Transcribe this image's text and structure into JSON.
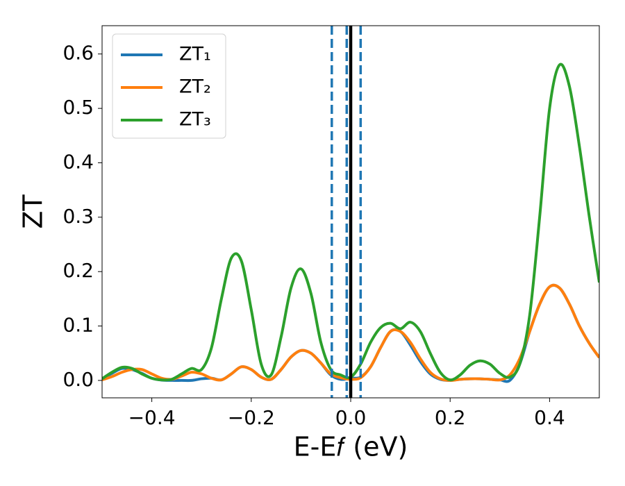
{
  "chart_data": {
    "type": "line",
    "xlabel": "E-E𝑓 (eV)",
    "ylabel": "ZT",
    "x": [
      -0.5,
      -0.48,
      -0.46,
      -0.44,
      -0.42,
      -0.4,
      -0.38,
      -0.36,
      -0.34,
      -0.32,
      -0.3,
      -0.28,
      -0.26,
      -0.24,
      -0.22,
      -0.2,
      -0.18,
      -0.16,
      -0.14,
      -0.12,
      -0.1,
      -0.08,
      -0.06,
      -0.04,
      -0.02,
      0.0,
      0.02,
      0.04,
      0.06,
      0.08,
      0.1,
      0.12,
      0.14,
      0.16,
      0.18,
      0.2,
      0.22,
      0.24,
      0.26,
      0.28,
      0.3,
      0.32,
      0.34,
      0.36,
      0.38,
      0.4,
      0.42,
      0.44,
      0.46,
      0.48,
      0.5
    ],
    "series": [
      {
        "name": "ZT₁",
        "color": "#1f77b4",
        "values": [
          0.003,
          0.013,
          0.022,
          0.02,
          0.013,
          0.004,
          0.0005,
          0,
          0,
          0,
          0.003,
          0.004,
          0.001,
          0.012,
          0.025,
          0.02,
          0.006,
          0.002,
          0.02,
          0.043,
          0.055,
          0.05,
          0.032,
          0.01,
          0.002,
          0.004,
          0.006,
          0.025,
          0.06,
          0.09,
          0.09,
          0.065,
          0.035,
          0.012,
          0.002,
          0,
          0.002,
          0.003,
          0.003,
          0.002,
          0.001,
          0,
          0.03,
          0.09,
          0.14,
          0.172,
          0.17,
          0.14,
          0.1,
          0.068,
          0.042
        ]
      },
      {
        "name": "ZT₂",
        "color": "#ff7f0e",
        "values": [
          0.001,
          0.007,
          0.015,
          0.02,
          0.02,
          0.012,
          0.004,
          0.002,
          0.008,
          0.015,
          0.012,
          0.004,
          0.001,
          0.012,
          0.025,
          0.02,
          0.006,
          0.002,
          0.02,
          0.043,
          0.055,
          0.05,
          0.032,
          0.012,
          0.005,
          0.002,
          0.005,
          0.025,
          0.06,
          0.09,
          0.09,
          0.07,
          0.04,
          0.015,
          0.003,
          0,
          0.002,
          0.003,
          0.003,
          0.002,
          0.001,
          0.01,
          0.04,
          0.09,
          0.14,
          0.172,
          0.17,
          0.14,
          0.1,
          0.068,
          0.042
        ]
      },
      {
        "name": "ZT₃",
        "color": "#2ca02c",
        "values": [
          0.003,
          0.015,
          0.024,
          0.022,
          0.012,
          0.004,
          0.001,
          0.002,
          0.012,
          0.022,
          0.02,
          0.06,
          0.15,
          0.225,
          0.22,
          0.13,
          0.03,
          0.01,
          0.08,
          0.17,
          0.205,
          0.16,
          0.07,
          0.02,
          0.01,
          0.006,
          0.03,
          0.07,
          0.097,
          0.105,
          0.095,
          0.107,
          0.09,
          0.05,
          0.015,
          0.001,
          0.01,
          0.028,
          0.036,
          0.03,
          0.013,
          0.006,
          0.03,
          0.12,
          0.3,
          0.5,
          0.58,
          0.54,
          0.43,
          0.3,
          0.18
        ]
      }
    ],
    "vlines": [
      {
        "x": -0.038,
        "color": "#1f77b4",
        "style": "dashed"
      },
      {
        "x": -0.008,
        "color": "#1f77b4",
        "style": "dashed"
      },
      {
        "x": 0.02,
        "color": "#1f77b4",
        "style": "dashed"
      },
      {
        "x": 0.0,
        "color": "#000000",
        "style": "solid"
      }
    ],
    "xlim": [
      -0.5,
      0.5
    ],
    "ylim": [
      -0.032,
      0.652
    ],
    "xticks": [
      {
        "value": -0.4,
        "label": "−0.4"
      },
      {
        "value": -0.2,
        "label": "−0.2"
      },
      {
        "value": 0.0,
        "label": "0.0"
      },
      0.2,
      0.4
    ],
    "yticks": [
      {
        "value": 0.0,
        "label": "0.0"
      },
      0.1,
      0.2,
      0.3,
      0.4,
      0.5,
      0.6
    ],
    "legend": "upper left",
    "grid": false
  }
}
